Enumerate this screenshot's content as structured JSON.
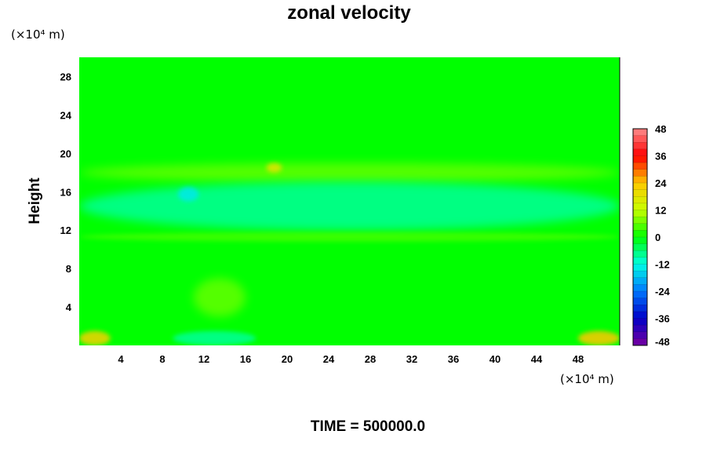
{
  "chart_data": {
    "type": "heatmap",
    "title": "zonal velocity",
    "ylabel": "Height",
    "xlabel": "",
    "x_unit_label": "(×10⁴ m)",
    "y_unit_label": "(×10⁴ m)",
    "xlim": [
      0,
      52
    ],
    "ylim": [
      0,
      30
    ],
    "x_ticks": [
      "4",
      "8",
      "12",
      "16",
      "20",
      "24",
      "28",
      "32",
      "36",
      "40",
      "44",
      "48"
    ],
    "y_ticks": [
      "4",
      "8",
      "12",
      "16",
      "20",
      "24",
      "28"
    ],
    "time_label": "TIME = 500000.0",
    "colorbar": {
      "range": [
        -48,
        48
      ],
      "labels": [
        "48",
        "36",
        "24",
        "12",
        "0",
        "-12",
        "-24",
        "-36",
        "-48"
      ]
    },
    "background_value": 0,
    "features": [
      {
        "name": "upper-jet",
        "x": [
          0,
          52
        ],
        "y": [
          17,
          19
        ],
        "value": 6
      },
      {
        "name": "mid-easterly-band",
        "x": [
          0,
          52
        ],
        "y": [
          12,
          17
        ],
        "value": -8
      },
      {
        "name": "lower-jet",
        "x": [
          0,
          52
        ],
        "y": [
          10.8,
          11.8
        ],
        "value": 4
      },
      {
        "name": "strong-west-core",
        "x": [
          18,
          19.5
        ],
        "y": [
          18,
          19
        ],
        "value": 18
      },
      {
        "name": "strong-east-core",
        "x": [
          9.5,
          11.5
        ],
        "y": [
          15,
          16.5
        ],
        "value": -14
      },
      {
        "name": "bl-westerly-left",
        "x": [
          0,
          3
        ],
        "y": [
          0,
          1.5
        ],
        "value": 22
      },
      {
        "name": "bl-westerly-right",
        "x": [
          48,
          52
        ],
        "y": [
          0,
          1.5
        ],
        "value": 24
      },
      {
        "name": "bl-easterly-center",
        "x": [
          9,
          17
        ],
        "y": [
          0,
          1.5
        ],
        "value": -8
      },
      {
        "name": "low-westerly-center",
        "x": [
          11,
          16
        ],
        "y": [
          3,
          7
        ],
        "value": 6
      }
    ]
  }
}
